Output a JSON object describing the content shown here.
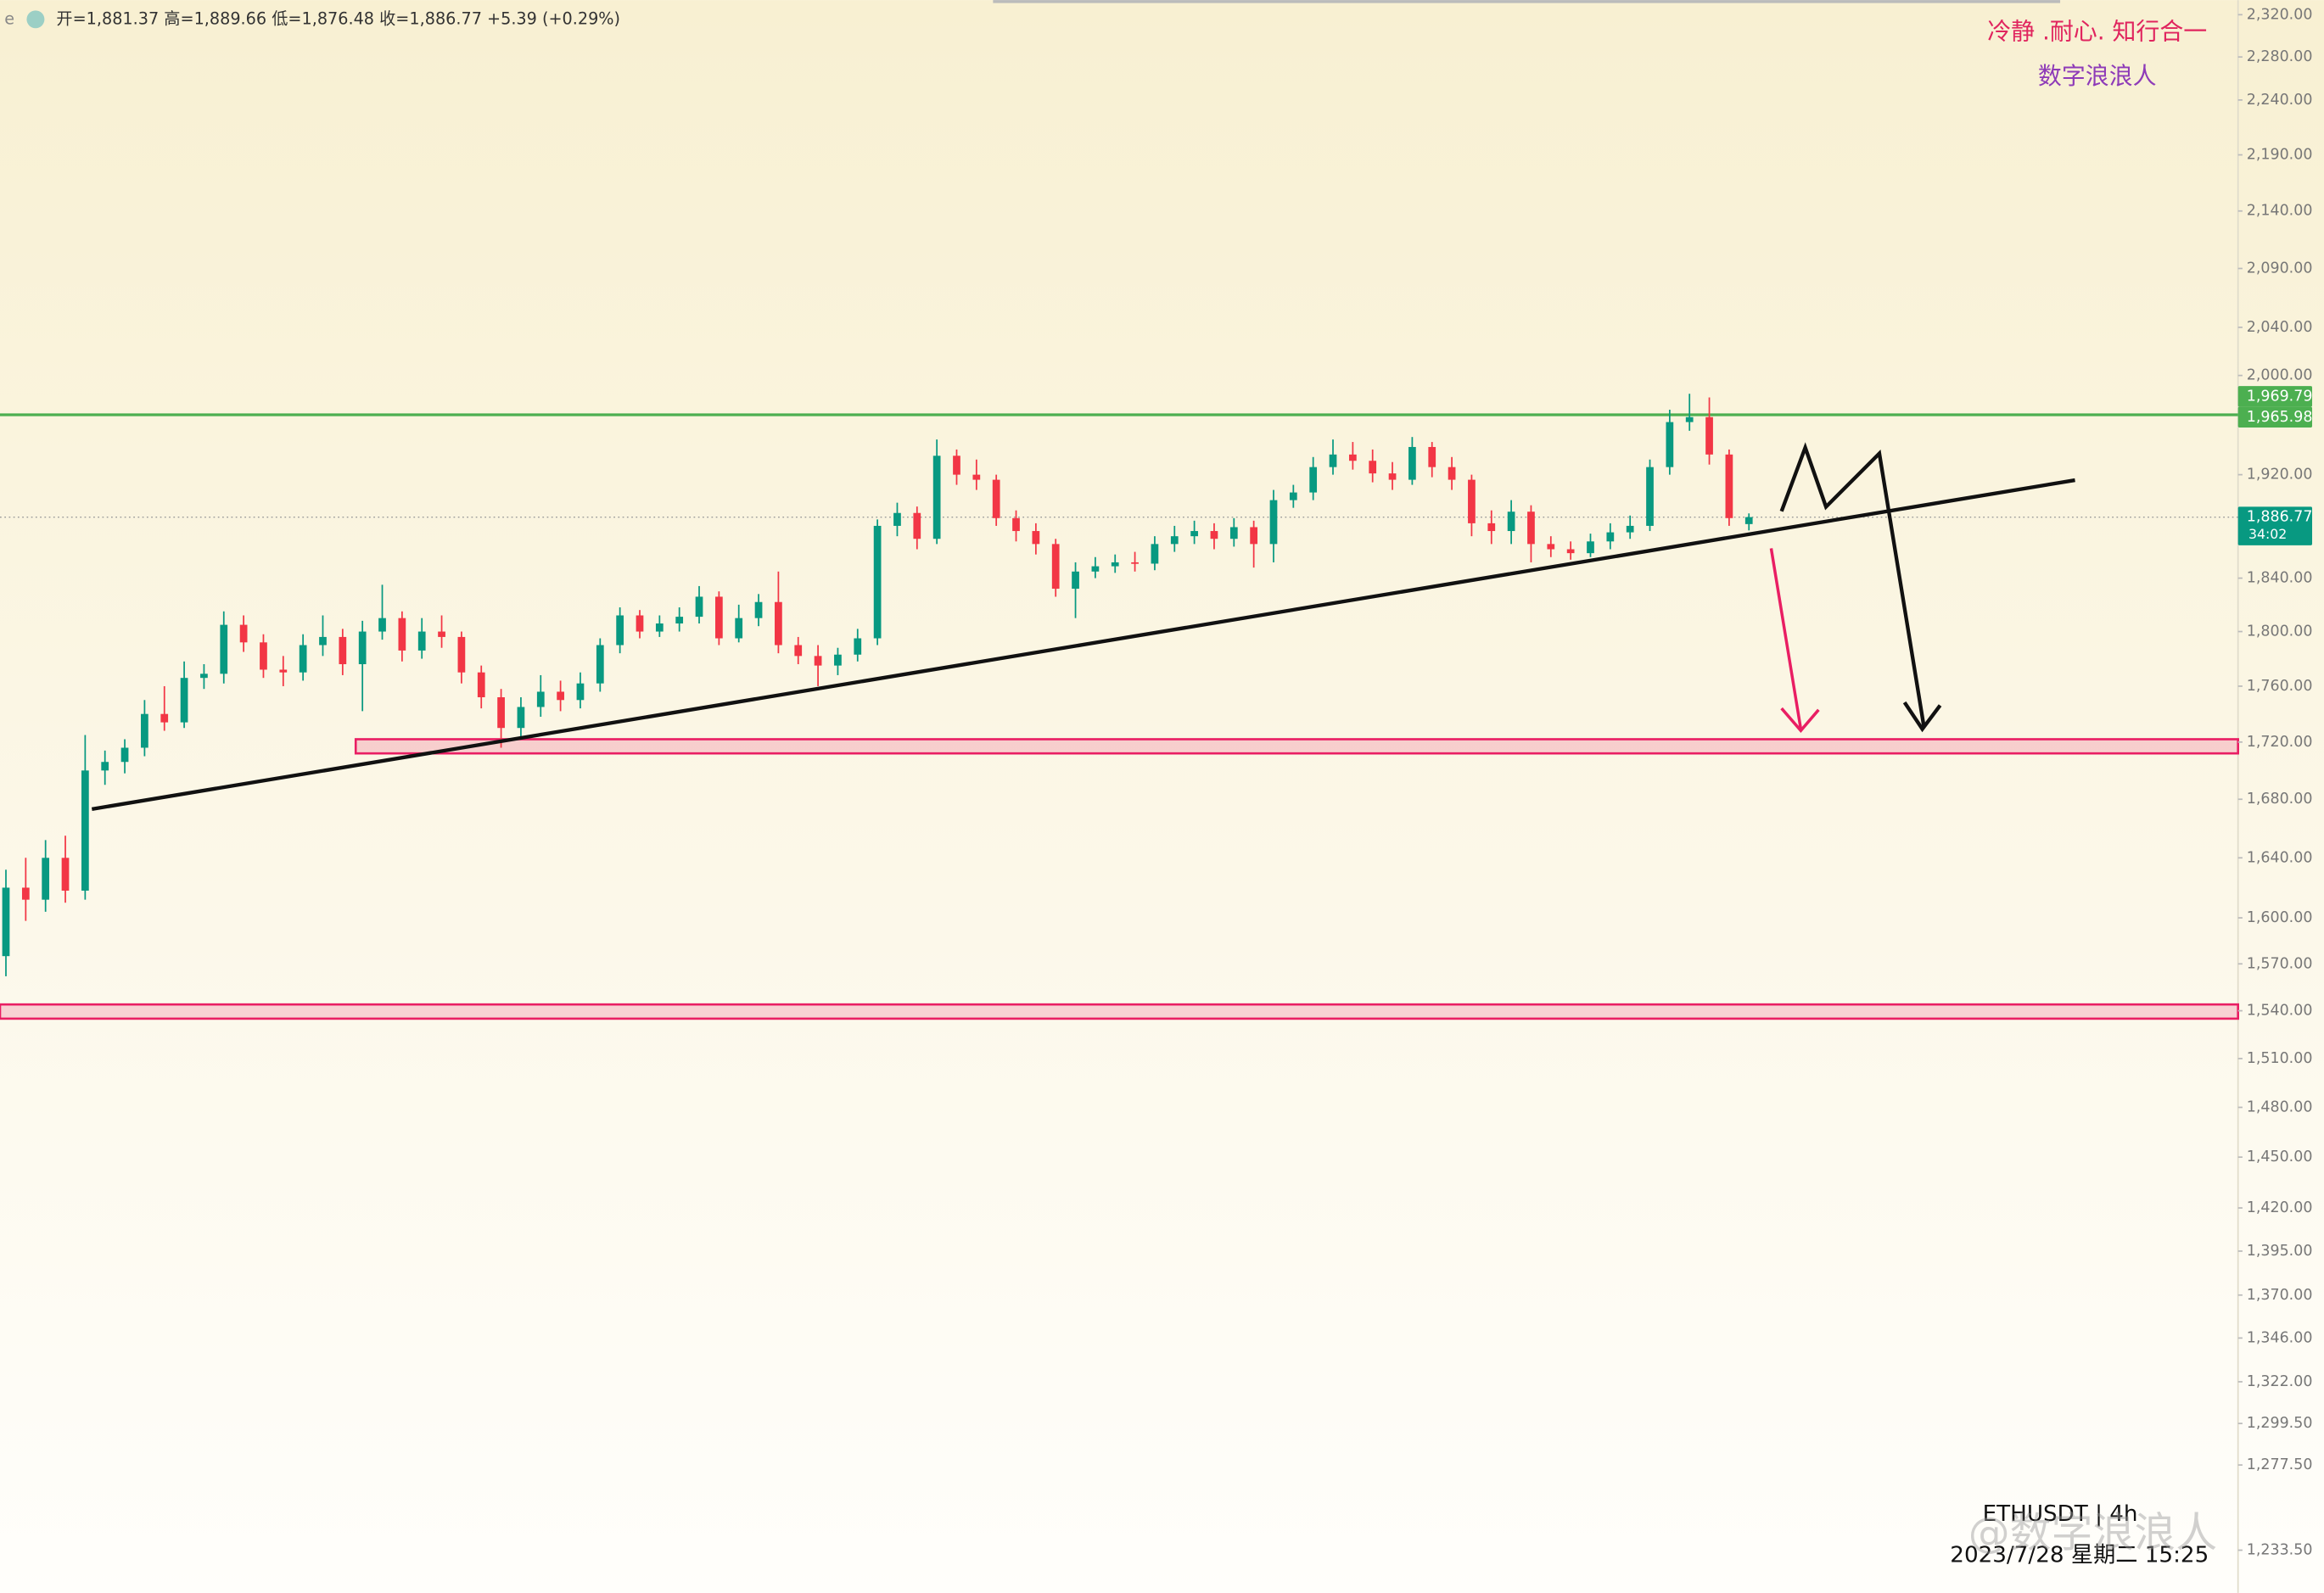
{
  "chart_data": {
    "type": "candlestick",
    "log_scale": true,
    "header": "开=1,881.37 高=1,889.66 低=1,876.48 收=1,886.77 +5.39 (+0.29%)",
    "annotations": [
      "冷静 .耐心. 知行合一",
      "数字浪浪人"
    ],
    "symbol": "ETHUSDT | 4h",
    "datetime": "2023/7/28 星期二 15:25",
    "watermark": "@数字浪浪人",
    "up_color": "#089981",
    "down_color": "#f23645",
    "open": [
      1575,
      1620,
      1612,
      1640,
      1618,
      1700,
      1706,
      1716,
      1740,
      1734,
      1766,
      1769,
      1805,
      1792,
      1772,
      1770,
      1790,
      1796,
      1776,
      1800,
      1810,
      1786,
      1800,
      1796,
      1770,
      1752,
      1730,
      1745,
      1756,
      1750,
      1762,
      1790,
      1812,
      1800,
      1806,
      1811,
      1826,
      1795,
      1810,
      1822,
      1790,
      1782,
      1775,
      1783,
      1795,
      1880,
      1890,
      1870,
      1935,
      1920,
      1916,
      1886,
      1876,
      1866,
      1832,
      1845,
      1849,
      1852,
      1851,
      1866,
      1872,
      1876,
      1870,
      1879,
      1866,
      1900,
      1906,
      1926,
      1936,
      1931,
      1921,
      1916,
      1942,
      1926,
      1916,
      1882,
      1876,
      1891,
      1866,
      1862,
      1859,
      1868,
      1875,
      1880,
      1926,
      1962,
      1966,
      1936,
      1881.37
    ],
    "high": [
      1632,
      1640,
      1652,
      1655,
      1725,
      1714,
      1722,
      1750,
      1760,
      1778,
      1776,
      1815,
      1812,
      1798,
      1782,
      1798,
      1812,
      1802,
      1808,
      1835,
      1815,
      1810,
      1812,
      1800,
      1775,
      1758,
      1752,
      1768,
      1764,
      1770,
      1795,
      1818,
      1816,
      1812,
      1818,
      1834,
      1830,
      1820,
      1828,
      1845,
      1796,
      1790,
      1788,
      1802,
      1885,
      1898,
      1895,
      1948,
      1940,
      1932,
      1920,
      1892,
      1882,
      1870,
      1852,
      1856,
      1858,
      1860,
      1872,
      1880,
      1884,
      1882,
      1886,
      1884,
      1908,
      1912,
      1934,
      1948,
      1946,
      1940,
      1930,
      1950,
      1946,
      1934,
      1920,
      1892,
      1900,
      1896,
      1872,
      1868,
      1874,
      1882,
      1888,
      1932,
      1972,
      1985,
      1982,
      1940,
      1889.66
    ],
    "low": [
      1562,
      1598,
      1604,
      1610,
      1612,
      1690,
      1698,
      1710,
      1728,
      1730,
      1758,
      1762,
      1785,
      1766,
      1760,
      1764,
      1782,
      1768,
      1742,
      1794,
      1778,
      1780,
      1788,
      1762,
      1744,
      1716,
      1722,
      1738,
      1742,
      1744,
      1756,
      1784,
      1795,
      1796,
      1800,
      1806,
      1790,
      1792,
      1804,
      1784,
      1776,
      1760,
      1768,
      1778,
      1790,
      1872,
      1862,
      1866,
      1912,
      1908,
      1880,
      1868,
      1858,
      1826,
      1810,
      1840,
      1844,
      1845,
      1846,
      1860,
      1866,
      1862,
      1864,
      1848,
      1852,
      1894,
      1900,
      1920,
      1924,
      1914,
      1908,
      1912,
      1918,
      1908,
      1872,
      1866,
      1866,
      1852,
      1856,
      1854,
      1856,
      1862,
      1870,
      1876,
      1920,
      1955,
      1928,
      1880,
      1876.48
    ],
    "close": [
      1620,
      1612,
      1640,
      1618,
      1700,
      1706,
      1716,
      1740,
      1734,
      1766,
      1769,
      1805,
      1792,
      1772,
      1770,
      1790,
      1796,
      1776,
      1800,
      1810,
      1786,
      1800,
      1796,
      1770,
      1752,
      1730,
      1745,
      1756,
      1750,
      1762,
      1790,
      1812,
      1800,
      1806,
      1811,
      1826,
      1795,
      1810,
      1822,
      1790,
      1782,
      1775,
      1783,
      1795,
      1880,
      1890,
      1870,
      1935,
      1920,
      1916,
      1886,
      1876,
      1866,
      1832,
      1845,
      1849,
      1852,
      1851,
      1866,
      1872,
      1876,
      1870,
      1879,
      1866,
      1900,
      1906,
      1926,
      1936,
      1931,
      1921,
      1916,
      1942,
      1926,
      1916,
      1882,
      1876,
      1891,
      1866,
      1862,
      1859,
      1868,
      1875,
      1880,
      1926,
      1962,
      1966,
      1936,
      1886,
      1886.77
    ],
    "ylim": [
      1212,
      2334
    ],
    "yticks": [
      {
        "value": 2320,
        "label": "2,320.00"
      },
      {
        "value": 2280,
        "label": "2,280.00"
      },
      {
        "value": 2240,
        "label": "2,240.00"
      },
      {
        "value": 2190,
        "label": "2,190.00"
      },
      {
        "value": 2140,
        "label": "2,140.00"
      },
      {
        "value": 2090,
        "label": "2,090.00"
      },
      {
        "value": 2040,
        "label": "2,040.00"
      },
      {
        "value": 2000,
        "label": "2,000.00"
      },
      {
        "value": 1920,
        "label": "1,920.00"
      },
      {
        "value": 1840,
        "label": "1,840.00"
      },
      {
        "value": 1800,
        "label": "1,800.00"
      },
      {
        "value": 1760,
        "label": "1,760.00"
      },
      {
        "value": 1720,
        "label": "1,720.00"
      },
      {
        "value": 1680,
        "label": "1,680.00"
      },
      {
        "value": 1640,
        "label": "1,640.00"
      },
      {
        "value": 1600,
        "label": "1,600.00"
      },
      {
        "value": 1570,
        "label": "1,570.00"
      },
      {
        "value": 1540,
        "label": "1,540.00"
      },
      {
        "value": 1510,
        "label": "1,510.00"
      },
      {
        "value": 1480,
        "label": "1,480.00"
      },
      {
        "value": 1450,
        "label": "1,450.00"
      },
      {
        "value": 1420,
        "label": "1,420.00"
      },
      {
        "value": 1395,
        "label": "1,395.00"
      },
      {
        "value": 1370,
        "label": "1,370.00"
      },
      {
        "value": 1346,
        "label": "1,346.00"
      },
      {
        "value": 1322,
        "label": "1,322.00"
      },
      {
        "value": 1299.5,
        "label": "1,299.50"
      },
      {
        "value": 1277.5,
        "label": "1,277.50"
      },
      {
        "value": 1233.5,
        "label": "1,233.50"
      }
    ],
    "hline": {
      "value": 1967.9,
      "color": "#4caf50"
    },
    "zones": [
      {
        "low": 1712,
        "high": 1722,
        "color": "#e91e63"
      },
      {
        "low": 1535,
        "high": 1544,
        "color": "#e91e63"
      }
    ],
    "price_tags": [
      {
        "value": 1969.79,
        "label": "1,969.79"
      },
      {
        "value": 1965.98,
        "label": "1,965.98"
      },
      {
        "value": 1886.77,
        "label": "1,886.77"
      }
    ],
    "countdown": "34:02"
  }
}
